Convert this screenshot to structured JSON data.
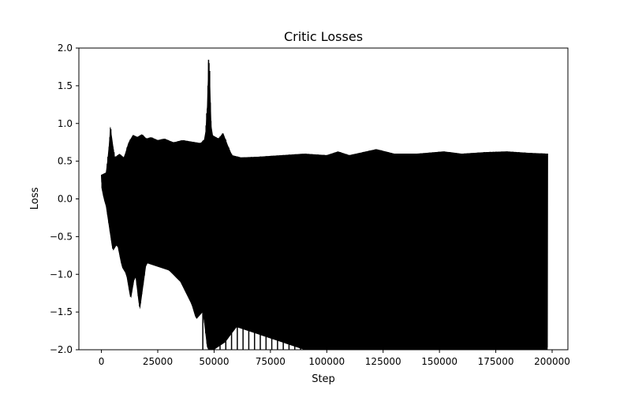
{
  "chart_data": {
    "type": "line",
    "title": "Critic Losses",
    "xlabel": "Step",
    "ylabel": "Loss",
    "xlim": [
      -10000,
      207000
    ],
    "ylim": [
      -2.0,
      2.0
    ],
    "x_ticks": [
      0,
      25000,
      50000,
      75000,
      100000,
      125000,
      150000,
      175000,
      200000
    ],
    "y_ticks": [
      -2.0,
      -1.5,
      -1.0,
      -0.5,
      0.0,
      0.5,
      1.0,
      1.5,
      2.0
    ],
    "x_tick_labels": [
      "0",
      "25000",
      "50000",
      "75000",
      "100000",
      "125000",
      "150000",
      "175000",
      "200000"
    ],
    "y_tick_labels": [
      "−2.0",
      "−1.5",
      "−1.0",
      "−0.5",
      "0.0",
      "0.5",
      "1.0",
      "1.5",
      "2.0"
    ],
    "grid": false,
    "series": [
      {
        "color": "#000000",
        "upper_envelope": [
          [
            0,
            0.32
          ],
          [
            2000,
            0.35
          ],
          [
            3000,
            0.6
          ],
          [
            4000,
            0.98
          ],
          [
            5000,
            0.75
          ],
          [
            6000,
            0.55
          ],
          [
            8000,
            0.6
          ],
          [
            10000,
            0.55
          ],
          [
            12000,
            0.75
          ],
          [
            14000,
            0.85
          ],
          [
            16000,
            0.82
          ],
          [
            18000,
            0.86
          ],
          [
            20000,
            0.8
          ],
          [
            22000,
            0.82
          ],
          [
            25000,
            0.78
          ],
          [
            28000,
            0.8
          ],
          [
            32000,
            0.75
          ],
          [
            36000,
            0.78
          ],
          [
            40000,
            0.76
          ],
          [
            44000,
            0.74
          ],
          [
            46000,
            0.8
          ],
          [
            47000,
            1.3
          ],
          [
            47500,
            1.85
          ],
          [
            48000,
            1.8
          ],
          [
            48500,
            1.2
          ],
          [
            49000,
            0.85
          ],
          [
            52000,
            0.8
          ],
          [
            54000,
            0.88
          ],
          [
            56000,
            0.72
          ],
          [
            58000,
            0.58
          ],
          [
            62000,
            0.55
          ],
          [
            70000,
            0.56
          ],
          [
            80000,
            0.58
          ],
          [
            90000,
            0.6
          ],
          [
            100000,
            0.58
          ],
          [
            105000,
            0.63
          ],
          [
            110000,
            0.58
          ],
          [
            122000,
            0.66
          ],
          [
            130000,
            0.6
          ],
          [
            140000,
            0.6
          ],
          [
            152000,
            0.63
          ],
          [
            160000,
            0.6
          ],
          [
            170000,
            0.62
          ],
          [
            180000,
            0.63
          ],
          [
            190000,
            0.61
          ],
          [
            198000,
            0.6
          ]
        ],
        "lower_envelope": [
          [
            0,
            0.15
          ],
          [
            1000,
            0.0
          ],
          [
            2000,
            -0.1
          ],
          [
            3000,
            -0.3
          ],
          [
            5000,
            -0.7
          ],
          [
            7000,
            -0.6
          ],
          [
            9000,
            -0.9
          ],
          [
            11000,
            -1.0
          ],
          [
            13000,
            -1.35
          ],
          [
            15000,
            -1.0
          ],
          [
            17000,
            -1.5
          ],
          [
            20000,
            -0.85
          ],
          [
            25000,
            -0.9
          ],
          [
            30000,
            -0.95
          ],
          [
            35000,
            -1.1
          ],
          [
            40000,
            -1.4
          ],
          [
            42000,
            -1.6
          ],
          [
            45000,
            -1.5
          ],
          [
            47000,
            -2.0
          ],
          [
            50000,
            -2.0
          ],
          [
            55000,
            -1.9
          ],
          [
            60000,
            -1.7
          ],
          [
            65000,
            -1.75
          ],
          [
            70000,
            -1.8
          ],
          [
            75000,
            -1.85
          ],
          [
            80000,
            -1.9
          ],
          [
            90000,
            -2.0
          ],
          [
            100000,
            -2.0
          ],
          [
            110000,
            -2.0
          ],
          [
            120000,
            -2.0
          ],
          [
            130000,
            -2.0
          ],
          [
            140000,
            -2.0
          ],
          [
            150000,
            -2.0
          ],
          [
            160000,
            -2.0
          ],
          [
            170000,
            -2.0
          ],
          [
            180000,
            -2.0
          ],
          [
            190000,
            -2.0
          ],
          [
            198000,
            -2.0
          ]
        ]
      }
    ]
  }
}
